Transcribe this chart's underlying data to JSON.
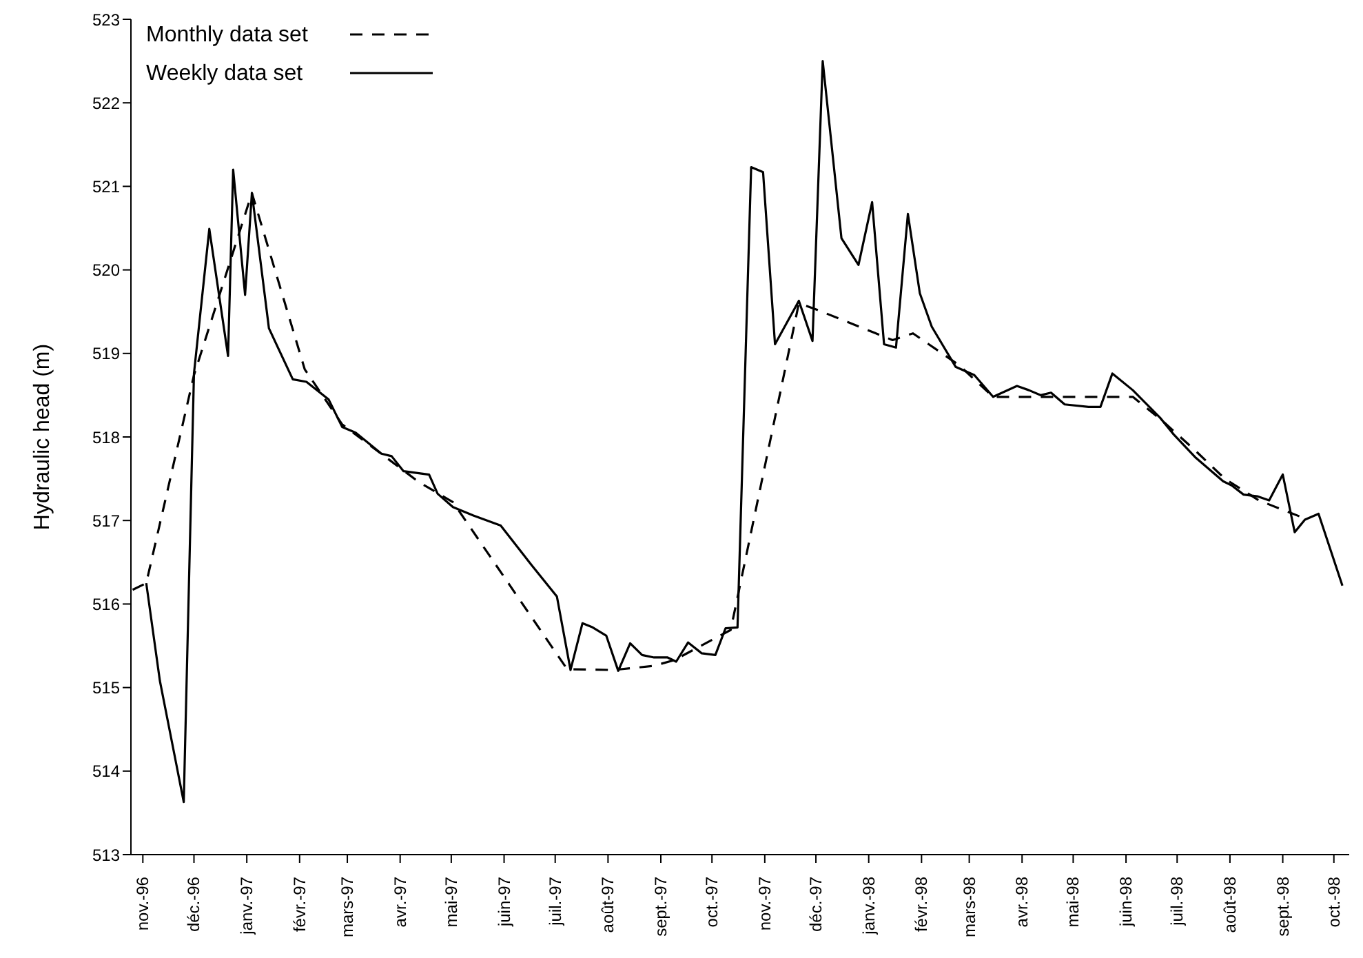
{
  "chart_data": {
    "type": "line",
    "ylabel": "Hydraulic head (m)",
    "legend": "top left",
    "marker": "none",
    "xlim": [
      "1996-10-25",
      "1998-10-10"
    ],
    "xticks": [
      {
        "value": "1996-11-01",
        "label": "nov.-96"
      },
      {
        "value": "1996-12-01",
        "label": "déc.-96"
      },
      {
        "value": "1997-01-01",
        "label": "janv.-97"
      },
      {
        "value": "1997-02-01",
        "label": "févr.-97"
      },
      {
        "value": "1997-03-01",
        "label": "mars-97"
      },
      {
        "value": "1997-04-01",
        "label": "avr.-97"
      },
      {
        "value": "1997-05-01",
        "label": "mai-97"
      },
      {
        "value": "1997-06-01",
        "label": "juin-97"
      },
      {
        "value": "1997-07-01",
        "label": "juil.-97"
      },
      {
        "value": "1997-08-01",
        "label": "août-97"
      },
      {
        "value": "1997-09-01",
        "label": "sept.-97"
      },
      {
        "value": "1997-10-01",
        "label": "oct.-97"
      },
      {
        "value": "1997-11-01",
        "label": "nov.-97"
      },
      {
        "value": "1997-12-01",
        "label": "déc.-97"
      },
      {
        "value": "1998-01-01",
        "label": "janv.-98"
      },
      {
        "value": "1998-02-01",
        "label": "févr.-98"
      },
      {
        "value": "1998-03-01",
        "label": "mars-98"
      },
      {
        "value": "1998-04-01",
        "label": "avr.-98"
      },
      {
        "value": "1998-05-01",
        "label": "mai-98"
      },
      {
        "value": "1998-06-01",
        "label": "juin-98"
      },
      {
        "value": "1998-07-01",
        "label": "juil.-98"
      },
      {
        "value": "1998-08-01",
        "label": "août-98"
      },
      {
        "value": "1998-09-01",
        "label": "sept.-98"
      },
      {
        "value": "1998-10-01",
        "label": "oct.-98"
      }
    ],
    "ylim": [
      513,
      523
    ],
    "yticks": [
      513,
      514,
      515,
      516,
      517,
      518,
      519,
      520,
      521,
      522,
      523
    ],
    "series": [
      {
        "name": "Monthly data set",
        "color": "#000000",
        "line_style": "dashed",
        "x": [
          "1996-10-26",
          "1996-11-03",
          "1996-12-01",
          "1997-01-04",
          "1997-02-04",
          "1997-02-26",
          "1997-04-12",
          "1997-05-02",
          "1997-07-08",
          "1997-08-04",
          "1997-08-28",
          "1997-09-09",
          "1997-10-12",
          "1997-11-21",
          "1997-12-02",
          "1998-01-15",
          "1998-01-27",
          "1998-02-23",
          "1998-03-15",
          "1998-06-05",
          "1998-06-22",
          "1998-07-11",
          "1998-07-29",
          "1998-08-18",
          "1998-09-12"
        ],
        "values": [
          516.17,
          516.25,
          518.74,
          520.92,
          518.81,
          518.15,
          517.46,
          517.22,
          515.22,
          515.21,
          515.26,
          515.33,
          515.69,
          519.6,
          519.52,
          519.16,
          519.24,
          518.86,
          518.48,
          518.48,
          518.2,
          517.85,
          517.5,
          517.24,
          517.04
        ]
      },
      {
        "name": "Weekly data set",
        "color": "#000000",
        "line_style": "solid",
        "x": [
          "1996-11-03",
          "1996-11-11",
          "1996-11-25",
          "1996-12-01",
          "1996-12-10",
          "1996-12-21",
          "1996-12-24",
          "1996-12-31",
          "1997-01-04",
          "1997-01-14",
          "1997-01-28",
          "1997-02-05",
          "1997-02-18",
          "1997-02-26",
          "1997-03-06",
          "1997-03-21",
          "1997-03-27",
          "1997-04-03",
          "1997-04-18",
          "1997-04-23",
          "1997-05-02",
          "1997-05-14",
          "1997-05-30",
          "1997-06-17",
          "1997-07-02",
          "1997-07-10",
          "1997-07-17",
          "1997-07-23",
          "1997-07-31",
          "1997-08-07",
          "1997-08-14",
          "1997-08-21",
          "1997-08-28",
          "1997-09-05",
          "1997-09-10",
          "1997-09-17",
          "1997-09-25",
          "1997-10-03",
          "1997-10-09",
          "1997-10-16",
          "1997-10-24",
          "1997-10-31",
          "1997-11-07",
          "1997-11-21",
          "1997-11-29",
          "1997-12-05",
          "1997-12-16",
          "1997-12-26",
          "1998-01-03",
          "1998-01-10",
          "1998-01-17",
          "1998-01-24",
          "1998-01-31",
          "1998-02-07",
          "1998-02-21",
          "1998-03-04",
          "1998-03-15",
          "1998-03-29",
          "1998-04-05",
          "1998-04-12",
          "1998-04-18",
          "1998-04-26",
          "1998-05-10",
          "1998-05-17",
          "1998-05-24",
          "1998-06-05",
          "1998-06-21",
          "1998-06-29",
          "1998-07-12",
          "1998-07-28",
          "1998-08-02",
          "1998-08-09",
          "1998-08-17",
          "1998-08-24",
          "1998-09-01",
          "1998-09-08",
          "1998-09-14",
          "1998-09-22",
          "1998-10-06"
        ],
        "values": [
          516.25,
          515.08,
          513.63,
          518.76,
          520.49,
          518.97,
          521.2,
          519.7,
          520.92,
          519.3,
          518.69,
          518.66,
          518.45,
          518.12,
          518.05,
          517.8,
          517.77,
          517.59,
          517.55,
          517.32,
          517.16,
          517.06,
          516.94,
          516.47,
          516.09,
          515.21,
          515.77,
          515.72,
          515.62,
          515.2,
          515.53,
          515.39,
          515.36,
          515.36,
          515.31,
          515.54,
          515.41,
          515.39,
          515.71,
          515.72,
          521.23,
          521.17,
          519.11,
          519.63,
          519.15,
          522.5,
          520.38,
          520.06,
          520.81,
          519.11,
          519.07,
          520.67,
          519.72,
          519.32,
          518.84,
          518.74,
          518.48,
          518.61,
          518.56,
          518.5,
          518.53,
          518.39,
          518.36,
          518.36,
          518.76,
          518.56,
          518.23,
          518.03,
          517.75,
          517.47,
          517.42,
          517.31,
          517.29,
          517.24,
          517.55,
          516.86,
          517.01,
          517.08,
          516.22
        ]
      }
    ]
  }
}
